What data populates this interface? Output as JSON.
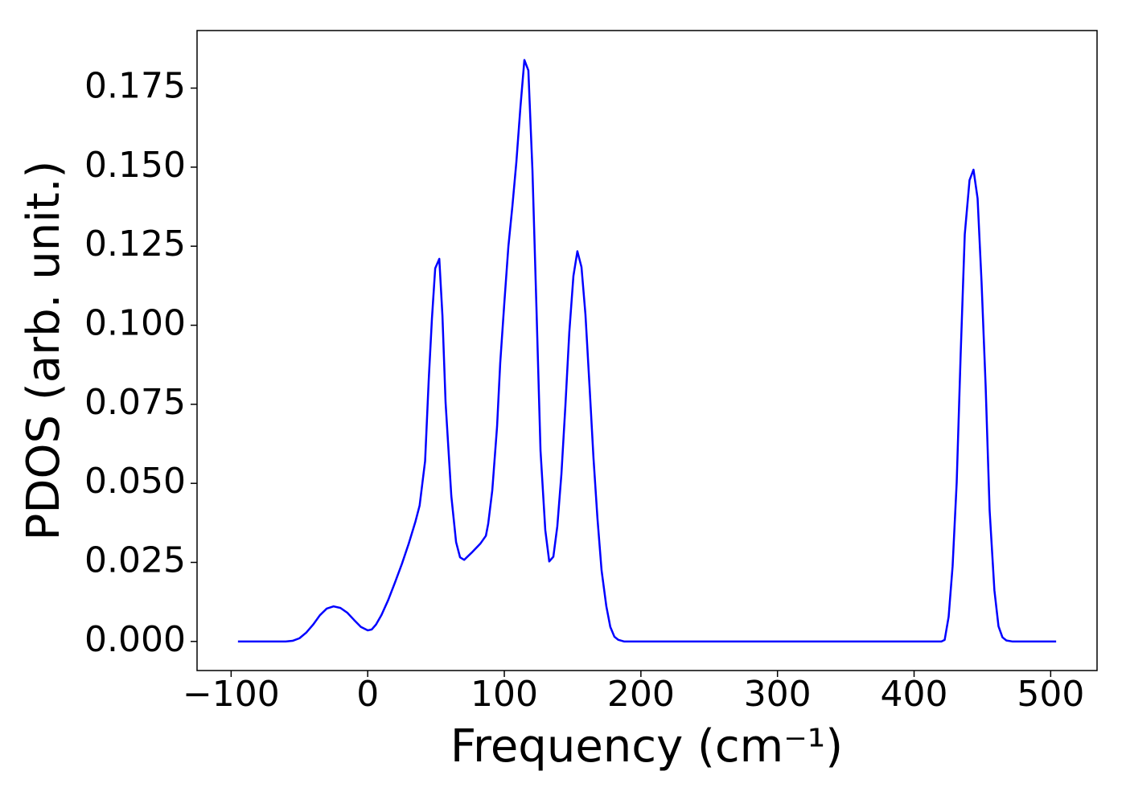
{
  "chart_data": {
    "type": "line",
    "x_label": "Frequency (cm⁻¹)",
    "y_label": "PDOS (arb. unit.)",
    "x": [
      -95,
      -60,
      -55,
      -50,
      -45,
      -40,
      -35,
      -30,
      -25,
      -20,
      -15,
      -10,
      -5,
      0,
      3,
      6,
      10,
      15,
      20,
      25,
      30,
      35,
      38,
      40,
      42,
      44.7,
      47,
      49.4,
      52.4,
      54.7,
      57,
      61.2,
      64.7,
      67.6,
      70.6,
      75.9,
      82.4,
      86.5,
      88.2,
      91.2,
      94.7,
      97,
      100,
      103,
      105.9,
      108.8,
      111.8,
      114.7,
      117.6,
      120.6,
      123.5,
      126.5,
      130,
      132.9,
      135.9,
      138.8,
      141.8,
      144.7,
      147.6,
      150.6,
      153.5,
      156.5,
      159.4,
      162.4,
      165.3,
      168.2,
      171.2,
      174.7,
      177.6,
      180.6,
      183.5,
      187.6,
      420,
      422.4,
      425.3,
      428.2,
      431.2,
      434.1,
      437.1,
      440.6,
      443.5,
      446.5,
      449.4,
      452.4,
      455.3,
      458.8,
      461.8,
      464.7,
      467.6,
      471.8,
      504
    ],
    "series": [
      {
        "color": "#0000ff",
        "values": [
          0,
          0,
          0.0002,
          0.001,
          0.0028,
          0.0053,
          0.0083,
          0.0104,
          0.0111,
          0.0106,
          0.0091,
          0.0068,
          0.0046,
          0.0035,
          0.0038,
          0.0053,
          0.0083,
          0.0131,
          0.0187,
          0.0245,
          0.0309,
          0.038,
          0.043,
          0.05,
          0.057,
          0.083,
          0.102,
          0.118,
          0.121,
          0.103,
          0.0756,
          0.046,
          0.0314,
          0.0266,
          0.0258,
          0.028,
          0.0309,
          0.0334,
          0.0372,
          0.0478,
          0.068,
          0.088,
          0.107,
          0.125,
          0.1376,
          0.1515,
          0.169,
          0.1839,
          0.1806,
          0.149,
          0.106,
          0.0604,
          0.0352,
          0.0253,
          0.0268,
          0.0364,
          0.0529,
          0.0744,
          0.0979,
          0.1156,
          0.1234,
          0.1184,
          0.1034,
          0.0807,
          0.0579,
          0.0389,
          0.0225,
          0.0111,
          0.0046,
          0.0015,
          0.0005,
          0,
          0,
          0.0005,
          0.0078,
          0.0238,
          0.0503,
          0.0908,
          0.1287,
          0.1459,
          0.1492,
          0.1401,
          0.1136,
          0.0807,
          0.0415,
          0.0162,
          0.0048,
          0.0013,
          0.0003,
          0,
          0
        ]
      }
    ],
    "xlim": [
      -124.95,
      533.95
    ],
    "ylim": [
      -0.0092,
      0.1932
    ],
    "xticks": [
      {
        "value": -100,
        "label": "−100"
      },
      0,
      100,
      200,
      300,
      400,
      500
    ],
    "yticks": [
      {
        "value": 0,
        "label": "0.000"
      },
      {
        "value": 0.025,
        "label": "0.025"
      },
      {
        "value": 0.05,
        "label": "0.050"
      },
      {
        "value": 0.075,
        "label": "0.075"
      },
      {
        "value": 0.1,
        "label": "0.100"
      },
      {
        "value": 0.125,
        "label": "0.125"
      },
      {
        "value": 0.15,
        "label": "0.150"
      },
      {
        "value": 0.175,
        "label": "0.175"
      }
    ]
  }
}
